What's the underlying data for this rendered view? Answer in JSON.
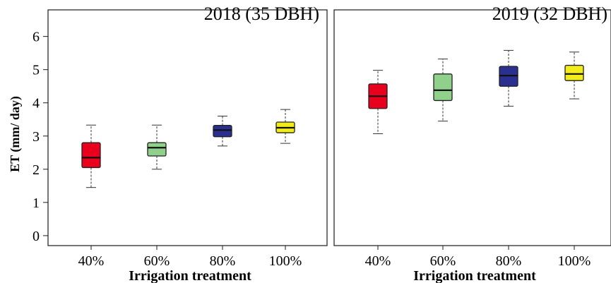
{
  "chart_data": [
    {
      "type": "box",
      "title": "2018 (35 DBH)",
      "xlabel": "Irrigation treatment",
      "ylabel": "ET (mm/ day)",
      "ylim": [
        -0.3,
        6.8
      ],
      "yticks": [
        "0",
        "1",
        "2",
        "3",
        "4",
        "5",
        "6"
      ],
      "categories": [
        "40%",
        "60%",
        "80%",
        "100%"
      ],
      "boxes": [
        {
          "category": "40%",
          "color": "#e8001c",
          "min": 1.45,
          "q1": 2.05,
          "median": 2.35,
          "q3": 2.8,
          "max": 3.33
        },
        {
          "category": "60%",
          "color": "#8fd18a",
          "min": 2.0,
          "q1": 2.4,
          "median": 2.65,
          "q3": 2.8,
          "max": 3.33
        },
        {
          "category": "80%",
          "color": "#2b2f8f",
          "min": 2.7,
          "q1": 2.98,
          "median": 3.18,
          "q3": 3.32,
          "max": 3.6
        },
        {
          "category": "100%",
          "color": "#f2ec18",
          "min": 2.78,
          "q1": 3.1,
          "median": 3.25,
          "q3": 3.42,
          "max": 3.8
        }
      ]
    },
    {
      "type": "box",
      "title": "2019 (32 DBH)",
      "xlabel": "Irrigation treatment",
      "ylabel": "",
      "ylim": [
        -0.3,
        6.8
      ],
      "categories": [
        "40%",
        "60%",
        "80%",
        "100%"
      ],
      "boxes": [
        {
          "category": "40%",
          "color": "#e8001c",
          "min": 3.07,
          "q1": 3.83,
          "median": 4.2,
          "q3": 4.57,
          "max": 4.98
        },
        {
          "category": "60%",
          "color": "#8fd18a",
          "min": 3.45,
          "q1": 4.07,
          "median": 4.38,
          "q3": 4.87,
          "max": 5.32
        },
        {
          "category": "80%",
          "color": "#2b2f8f",
          "min": 3.9,
          "q1": 4.5,
          "median": 4.82,
          "q3": 5.1,
          "max": 5.58
        },
        {
          "category": "100%",
          "color": "#f2ec18",
          "min": 4.12,
          "q1": 4.67,
          "median": 4.87,
          "q3": 5.13,
          "max": 5.53
        }
      ]
    }
  ]
}
